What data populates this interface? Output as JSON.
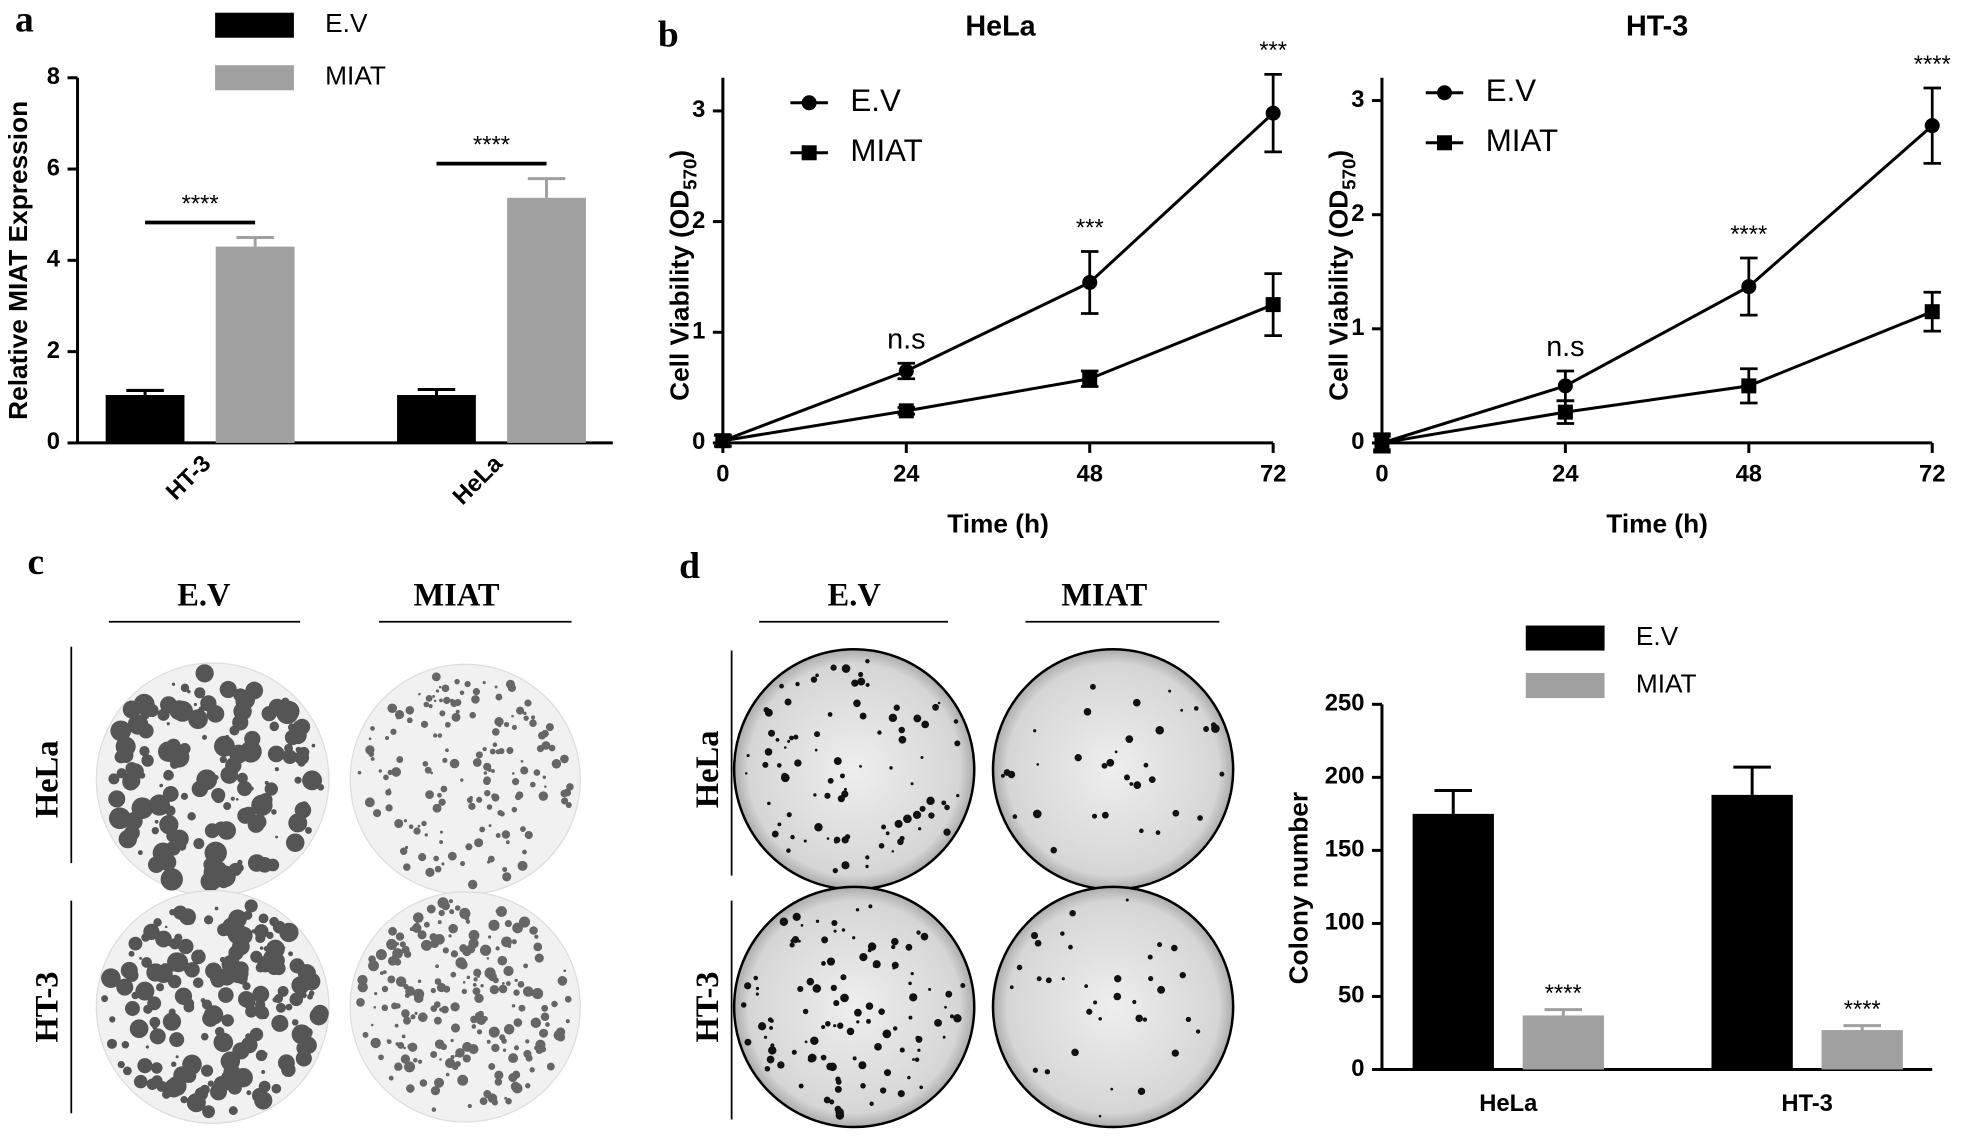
{
  "chart_data": [
    {
      "type": "bar",
      "panel": "a",
      "ylabel": "Relative MIAT Expression",
      "categories": [
        "HT-3",
        "HeLa"
      ],
      "series": [
        {
          "name": "E.V",
          "color": "#000000",
          "values": [
            1.05,
            1.05
          ],
          "errors": [
            0.1,
            0.12
          ]
        },
        {
          "name": "MIAT",
          "color": "#a0a0a0",
          "values": [
            4.3,
            5.37
          ],
          "errors": [
            0.2,
            0.42
          ]
        }
      ],
      "annotations": [
        "****",
        "****"
      ],
      "ylim": [
        0,
        8
      ],
      "yticks": [
        0,
        2,
        4,
        6,
        8
      ]
    },
    {
      "type": "line",
      "panel": "b",
      "title": "HeLa",
      "xlabel": "Time (h)",
      "ylabel": [
        "Cell Viability (OD",
        "570",
        ")"
      ],
      "x": [
        0,
        24,
        48,
        72
      ],
      "series": [
        {
          "name": "E.V",
          "marker": "circle",
          "color": "#000000",
          "values": [
            0.02,
            0.65,
            1.45,
            2.98
          ],
          "errors": [
            0.05,
            0.07,
            0.28,
            0.35
          ]
        },
        {
          "name": "MIAT",
          "marker": "square",
          "color": "#000000",
          "values": [
            0.02,
            0.29,
            0.58,
            1.25
          ],
          "errors": [
            0.05,
            0.03,
            0.07,
            0.28
          ]
        }
      ],
      "annotations": [
        null,
        "n.s",
        "***",
        "***"
      ],
      "xlim": [
        0,
        72
      ],
      "xticks": [
        0,
        24,
        48,
        72
      ],
      "ylim": [
        0,
        3.3
      ],
      "yticks": [
        0,
        1,
        2,
        3
      ]
    },
    {
      "type": "line",
      "title": "HT-3",
      "xlabel": "Time (h)",
      "ylabel": [
        "Cell Viability (OD",
        "570",
        ")"
      ],
      "x": [
        0,
        24,
        48,
        72
      ],
      "series": [
        {
          "name": "E.V",
          "marker": "circle",
          "color": "#000000",
          "values": [
            0.0,
            0.5,
            1.37,
            2.78
          ],
          "errors": [
            0.08,
            0.13,
            0.25,
            0.33
          ]
        },
        {
          "name": "MIAT",
          "marker": "square",
          "color": "#000000",
          "values": [
            0.0,
            0.27,
            0.5,
            1.15
          ],
          "errors": [
            0.06,
            0.1,
            0.15,
            0.17
          ]
        }
      ],
      "annotations": [
        null,
        "n.s",
        "****",
        "****"
      ],
      "xlim": [
        0,
        72
      ],
      "xticks": [
        0,
        24,
        48,
        72
      ],
      "ylim": [
        0,
        3.2
      ],
      "yticks": [
        0,
        1,
        2,
        3
      ]
    },
    {
      "type": "bar",
      "ylabel": "Colony number",
      "categories": [
        "HeLa",
        "HT-3"
      ],
      "series": [
        {
          "name": "E.V",
          "color": "#000000",
          "values": [
            175,
            188
          ],
          "errors": [
            16,
            19
          ]
        },
        {
          "name": "MIAT",
          "color": "#a0a0a0",
          "values": [
            37,
            27
          ],
          "errors": [
            4,
            3
          ],
          "annotations": [
            "****",
            "****"
          ]
        }
      ],
      "ylim": [
        0,
        250
      ],
      "yticks": [
        0,
        50,
        100,
        150,
        200,
        250
      ]
    }
  ],
  "panels": {
    "c": {
      "label": "c",
      "columns": [
        "E.V",
        "MIAT"
      ],
      "rows": [
        "HeLa",
        "HT-3"
      ]
    },
    "d": {
      "label": "d",
      "columns": [
        "E.V",
        "MIAT"
      ],
      "rows": [
        "HeLa",
        "HT-3"
      ]
    }
  }
}
